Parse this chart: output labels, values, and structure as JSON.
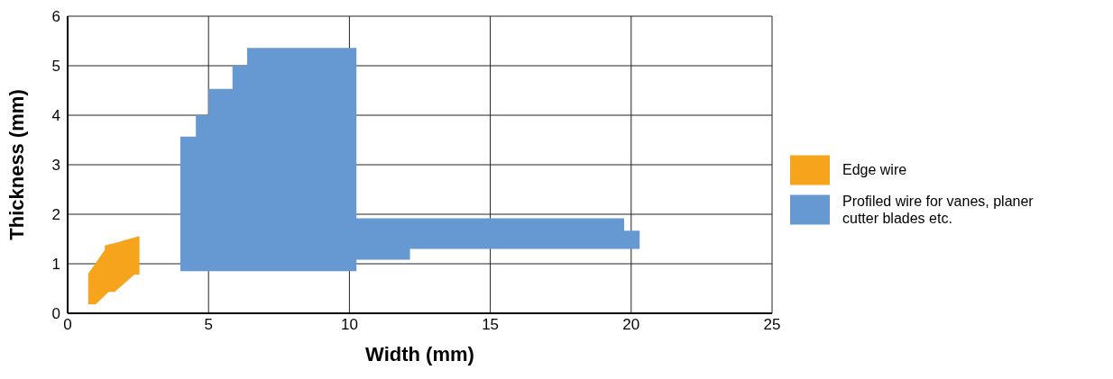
{
  "chart_data": {
    "type": "area",
    "xlabel": "Width (mm)",
    "ylabel": "Thickness (mm)",
    "xlim": [
      0,
      25
    ],
    "xticks": [
      0,
      5,
      10,
      15,
      20,
      25
    ],
    "ylim": [
      0,
      6
    ],
    "yticks": [
      0,
      1,
      2,
      3,
      4,
      5,
      6
    ],
    "grid": true,
    "legend": "right",
    "series": [
      {
        "name": "Edge wire",
        "type": "area",
        "color": "#f7a41d",
        "x": [
          0.73,
          1.0,
          1.32,
          1.32,
          1.45,
          1.67,
          2.37,
          2.55
        ],
        "values": [
          null,
          null,
          null,
          null,
          null,
          null,
          null,
          null
        ],
        "lower": [
          0.18,
          0.18,
          0.36,
          0.36,
          0.43,
          0.43,
          0.78,
          0.78
        ],
        "upper": [
          0.8,
          1.02,
          1.28,
          1.37,
          1.39,
          1.42,
          1.53,
          1.56
        ]
      },
      {
        "name": "Profiled wire for vanes, planer cutter blades etc.",
        "type": "step",
        "color": "#6699d1",
        "x": [
          4.0,
          4.55,
          5.0,
          5.85,
          6.37,
          10.25,
          12.15,
          19.75,
          20.3
        ],
        "values": [
          null,
          null,
          null,
          null,
          null,
          null,
          null,
          null,
          null
        ],
        "lower": [
          0.85,
          0.85,
          0.85,
          0.85,
          0.85,
          1.08,
          1.3,
          1.3,
          1.3
        ],
        "upper": [
          3.57,
          4.0,
          4.53,
          5.0,
          5.36,
          1.92,
          1.92,
          1.67,
          1.67
        ]
      }
    ]
  }
}
